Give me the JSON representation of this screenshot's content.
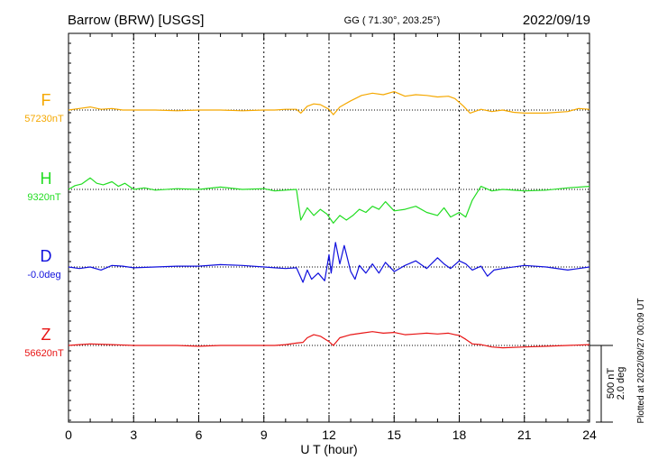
{
  "header": {
    "station": "Barrow (BRW)  [USGS]",
    "coords": "GG ( 71.30°, 203.25°)",
    "date": "2022/09/19"
  },
  "footer": {
    "plotted": "Plotted at 2022/09/27 00:09 UT"
  },
  "chart_data": {
    "type": "line",
    "xlabel": "U T (hour)",
    "xlim": [
      0,
      24
    ],
    "x_ticks": [
      "0",
      "3",
      "6",
      "9",
      "12",
      "15",
      "18",
      "21",
      "24"
    ],
    "grid": true,
    "scale_bar": {
      "line1": "500 nT",
      "line2": "2.0 deg"
    },
    "series": [
      {
        "name": "F",
        "baseline_label": "57230nT",
        "color": "#f5a800",
        "x": [
          0,
          0.5,
          1,
          1.5,
          2,
          2.5,
          3,
          4,
          5,
          6,
          7,
          8,
          9,
          9.5,
          10,
          10.5,
          10.7,
          11,
          11.3,
          11.6,
          12,
          12.2,
          12.5,
          13,
          13.5,
          14,
          14.5,
          15,
          15.5,
          16,
          16.5,
          17,
          17.5,
          17.8,
          18.2,
          18.5,
          19,
          19.5,
          20,
          20.5,
          21,
          22,
          23,
          23.5,
          24
        ],
        "values": [
          0,
          10,
          20,
          5,
          10,
          0,
          0,
          0,
          -5,
          0,
          0,
          -5,
          0,
          0,
          5,
          5,
          -20,
          25,
          40,
          35,
          5,
          -30,
          20,
          60,
          95,
          110,
          100,
          120,
          90,
          100,
          95,
          85,
          90,
          75,
          25,
          -20,
          5,
          -10,
          0,
          -15,
          -20,
          -20,
          -10,
          10,
          5
        ]
      },
      {
        "name": "H",
        "baseline_label": "9320nT",
        "color": "#22dd22",
        "x": [
          0,
          0.3,
          0.6,
          1,
          1.3,
          1.6,
          2,
          2.3,
          2.6,
          3,
          3.5,
          4,
          5,
          6,
          7,
          8,
          9,
          9.5,
          10,
          10.5,
          10.7,
          11,
          11.3,
          11.6,
          11.9,
          12.2,
          12.5,
          12.8,
          13.1,
          13.4,
          13.7,
          14,
          14.3,
          14.6,
          15,
          15.5,
          16,
          16.5,
          17,
          17.3,
          17.6,
          18,
          18.3,
          18.6,
          19,
          19.5,
          20,
          21,
          22,
          23,
          24
        ],
        "values": [
          0,
          25,
          35,
          75,
          40,
          30,
          50,
          20,
          40,
          0,
          10,
          -5,
          5,
          0,
          15,
          0,
          5,
          -10,
          -5,
          0,
          -200,
          -120,
          -170,
          -130,
          -160,
          -220,
          -170,
          -200,
          -170,
          -130,
          -150,
          -110,
          -130,
          -80,
          -140,
          -130,
          -110,
          -150,
          -170,
          -120,
          -180,
          -150,
          -180,
          -70,
          20,
          -10,
          0,
          -10,
          -5,
          10,
          20
        ]
      },
      {
        "name": "D",
        "baseline_label": "-0.0deg",
        "color": "#1010dd",
        "x": [
          0,
          0.5,
          1,
          1.5,
          2,
          2.5,
          3,
          4,
          5,
          6,
          7,
          8,
          9,
          9.5,
          10,
          10.5,
          10.8,
          11,
          11.2,
          11.5,
          11.8,
          12,
          12.1,
          12.3,
          12.5,
          12.7,
          13,
          13.2,
          13.4,
          13.7,
          14,
          14.3,
          14.6,
          15,
          15.5,
          16,
          16.5,
          17,
          17.3,
          17.6,
          18,
          18.3,
          18.6,
          19,
          19.3,
          19.6,
          20,
          21,
          22,
          23,
          24
        ],
        "values": [
          0,
          -10,
          0,
          -20,
          10,
          5,
          -5,
          0,
          5,
          5,
          15,
          10,
          0,
          -5,
          -10,
          -5,
          -100,
          -20,
          -80,
          -40,
          -90,
          80,
          -40,
          160,
          20,
          140,
          -30,
          -80,
          10,
          -40,
          20,
          -40,
          30,
          -30,
          10,
          40,
          -10,
          60,
          20,
          -10,
          40,
          20,
          -20,
          5,
          -60,
          -20,
          -10,
          10,
          0,
          -20,
          0
        ]
      },
      {
        "name": "Z",
        "baseline_label": "56620nT",
        "color": "#e81414",
        "x": [
          0,
          0.5,
          1,
          2,
          3,
          4,
          5,
          6,
          7,
          8,
          9,
          9.5,
          10,
          10.5,
          10.8,
          11,
          11.3,
          11.6,
          12,
          12.2,
          12.5,
          13,
          13.5,
          14,
          14.5,
          15,
          15.5,
          16,
          16.5,
          17,
          17.5,
          17.8,
          18,
          18.3,
          18.6,
          19,
          19.5,
          20,
          21,
          22,
          23,
          24
        ],
        "values": [
          0,
          5,
          10,
          5,
          0,
          0,
          0,
          -5,
          0,
          0,
          0,
          0,
          5,
          15,
          20,
          50,
          70,
          60,
          25,
          0,
          50,
          70,
          80,
          90,
          80,
          85,
          70,
          75,
          80,
          75,
          80,
          70,
          65,
          40,
          10,
          5,
          -10,
          -15,
          -10,
          -5,
          0,
          5
        ]
      }
    ]
  }
}
